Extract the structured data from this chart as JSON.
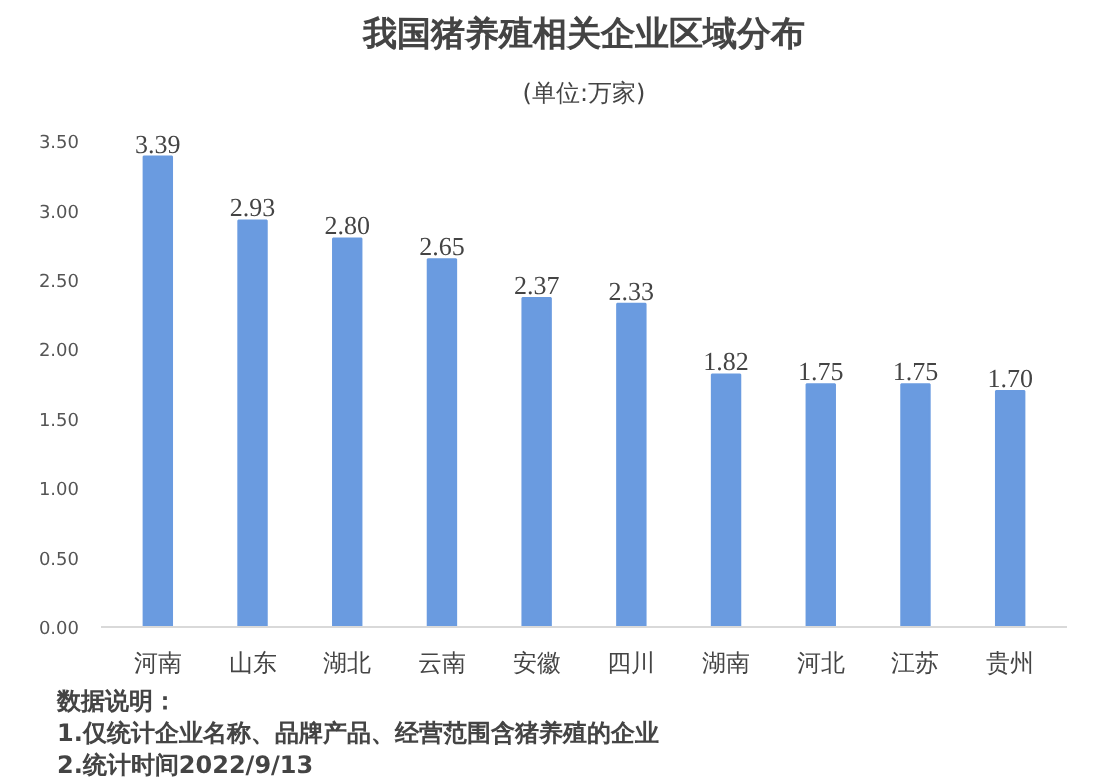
{
  "chart_data": {
    "type": "bar",
    "title": "我国猪养殖相关企业区域分布",
    "subtitle": "(单位:万家)",
    "categories": [
      "河南",
      "山东",
      "湖北",
      "云南",
      "安徽",
      "四川",
      "湖南",
      "河北",
      "江苏",
      "贵州"
    ],
    "values": [
      3.39,
      2.93,
      2.8,
      2.65,
      2.37,
      2.33,
      1.82,
      1.75,
      1.75,
      1.7
    ],
    "value_labels": [
      "3.39",
      "2.93",
      "2.80",
      "2.65",
      "2.37",
      "2.33",
      "1.82",
      "1.75",
      "1.75",
      "1.70"
    ],
    "color": "#6a9be0",
    "ylim": [
      0,
      3.5
    ],
    "yticks": [
      {
        "value": 0,
        "label": "0.00"
      },
      {
        "value": 0.5,
        "label": "0.50"
      },
      {
        "value": 1,
        "label": "1.00"
      },
      {
        "value": 1.5,
        "label": "1.50"
      },
      {
        "value": 2,
        "label": "2.00"
      },
      {
        "value": 2.5,
        "label": "2.50"
      },
      {
        "value": 3,
        "label": "3.00"
      },
      {
        "value": 3.5,
        "label": "3.50"
      }
    ],
    "annotations": [
      "数据说明：",
      "1.仅统计企业名称、品牌产品、经营范围含猪养殖的企业",
      "2.统计时间2022/9/13"
    ]
  }
}
